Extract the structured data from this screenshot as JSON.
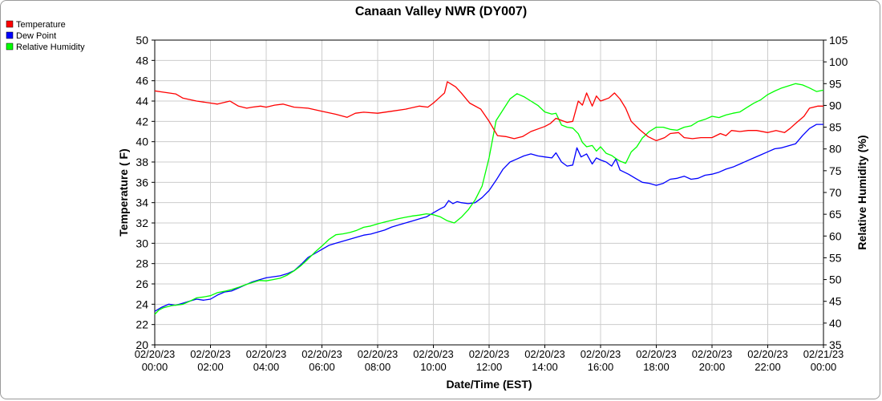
{
  "chart_data": {
    "type": "line",
    "title": "Canaan Valley NWR (DY007)",
    "xlabel": "Date/Time (EST)",
    "ylabel": "Temperature ( F)",
    "y2label": "Relative Humidity (%)",
    "ylim": [
      20,
      50
    ],
    "y2lim": [
      35,
      105
    ],
    "xlim_hours": [
      0,
      24
    ],
    "grid": true,
    "legend_position": "top-left",
    "yticks": [
      20,
      22,
      24,
      26,
      28,
      30,
      32,
      34,
      36,
      38,
      40,
      42,
      44,
      46,
      48,
      50
    ],
    "y2ticks": [
      35,
      40,
      45,
      50,
      55,
      60,
      65,
      70,
      75,
      80,
      85,
      90,
      95,
      100,
      105
    ],
    "xticks": [
      {
        "date": "02/20/23",
        "time": "00:00"
      },
      {
        "date": "02/20/23",
        "time": "02:00"
      },
      {
        "date": "02/20/23",
        "time": "04:00"
      },
      {
        "date": "02/20/23",
        "time": "06:00"
      },
      {
        "date": "02/20/23",
        "time": "08:00"
      },
      {
        "date": "02/20/23",
        "time": "10:00"
      },
      {
        "date": "02/20/23",
        "time": "12:00"
      },
      {
        "date": "02/20/23",
        "time": "14:00"
      },
      {
        "date": "02/20/23",
        "time": "16:00"
      },
      {
        "date": "02/20/23",
        "time": "18:00"
      },
      {
        "date": "02/20/23",
        "time": "20:00"
      },
      {
        "date": "02/20/23",
        "time": "22:00"
      },
      {
        "date": "02/21/23",
        "time": "00:00"
      }
    ],
    "series": [
      {
        "name": "Temperature",
        "color": "#ff0000",
        "axis": "left",
        "points": [
          [
            0,
            45.0
          ],
          [
            0.25,
            44.9
          ],
          [
            0.5,
            44.8
          ],
          [
            0.75,
            44.7
          ],
          [
            1.0,
            44.3
          ],
          [
            1.5,
            44.0
          ],
          [
            2.0,
            43.8
          ],
          [
            2.25,
            43.7
          ],
          [
            2.7,
            44.0
          ],
          [
            3.0,
            43.5
          ],
          [
            3.3,
            43.3
          ],
          [
            3.5,
            43.4
          ],
          [
            3.8,
            43.5
          ],
          [
            4.0,
            43.4
          ],
          [
            4.3,
            43.6
          ],
          [
            4.6,
            43.7
          ],
          [
            5.0,
            43.4
          ],
          [
            5.5,
            43.3
          ],
          [
            6.0,
            43.0
          ],
          [
            6.5,
            42.7
          ],
          [
            6.9,
            42.4
          ],
          [
            7.2,
            42.8
          ],
          [
            7.5,
            42.9
          ],
          [
            8.0,
            42.8
          ],
          [
            8.5,
            43.0
          ],
          [
            9.0,
            43.2
          ],
          [
            9.5,
            43.5
          ],
          [
            9.8,
            43.4
          ],
          [
            10.0,
            43.8
          ],
          [
            10.2,
            44.3
          ],
          [
            10.4,
            44.8
          ],
          [
            10.5,
            45.9
          ],
          [
            10.8,
            45.4
          ],
          [
            11.0,
            44.8
          ],
          [
            11.3,
            43.8
          ],
          [
            11.7,
            43.2
          ],
          [
            12.0,
            42.0
          ],
          [
            12.3,
            40.6
          ],
          [
            12.6,
            40.5
          ],
          [
            12.9,
            40.3
          ],
          [
            13.2,
            40.5
          ],
          [
            13.5,
            41.0
          ],
          [
            13.8,
            41.3
          ],
          [
            14.0,
            41.5
          ],
          [
            14.2,
            41.8
          ],
          [
            14.4,
            42.3
          ],
          [
            14.6,
            42.1
          ],
          [
            14.8,
            41.9
          ],
          [
            15.0,
            42.0
          ],
          [
            15.2,
            44.0
          ],
          [
            15.35,
            43.6
          ],
          [
            15.5,
            44.8
          ],
          [
            15.7,
            43.5
          ],
          [
            15.85,
            44.5
          ],
          [
            16.0,
            44.0
          ],
          [
            16.3,
            44.3
          ],
          [
            16.5,
            44.8
          ],
          [
            16.7,
            44.2
          ],
          [
            16.9,
            43.3
          ],
          [
            17.1,
            42.0
          ],
          [
            17.4,
            41.2
          ],
          [
            17.7,
            40.5
          ],
          [
            18.0,
            40.1
          ],
          [
            18.3,
            40.4
          ],
          [
            18.5,
            40.8
          ],
          [
            18.8,
            40.9
          ],
          [
            19.0,
            40.4
          ],
          [
            19.3,
            40.3
          ],
          [
            19.6,
            40.4
          ],
          [
            20.0,
            40.4
          ],
          [
            20.3,
            40.8
          ],
          [
            20.5,
            40.6
          ],
          [
            20.7,
            41.1
          ],
          [
            21.0,
            41.0
          ],
          [
            21.3,
            41.1
          ],
          [
            21.6,
            41.1
          ],
          [
            22.0,
            40.9
          ],
          [
            22.3,
            41.1
          ],
          [
            22.6,
            40.9
          ],
          [
            22.8,
            41.3
          ],
          [
            23.0,
            41.8
          ],
          [
            23.3,
            42.5
          ],
          [
            23.5,
            43.3
          ],
          [
            23.8,
            43.5
          ],
          [
            24.0,
            43.5
          ]
        ]
      },
      {
        "name": "Dew Point",
        "color": "#0000ff",
        "axis": "left",
        "points": [
          [
            0,
            23.3
          ],
          [
            0.25,
            23.7
          ],
          [
            0.5,
            24.0
          ],
          [
            0.75,
            23.9
          ],
          [
            1.0,
            24.1
          ],
          [
            1.25,
            24.3
          ],
          [
            1.5,
            24.5
          ],
          [
            1.75,
            24.4
          ],
          [
            2.0,
            24.5
          ],
          [
            2.25,
            24.9
          ],
          [
            2.5,
            25.2
          ],
          [
            2.75,
            25.3
          ],
          [
            3.0,
            25.6
          ],
          [
            3.25,
            25.9
          ],
          [
            3.5,
            26.2
          ],
          [
            3.75,
            26.4
          ],
          [
            4.0,
            26.6
          ],
          [
            4.25,
            26.7
          ],
          [
            4.5,
            26.8
          ],
          [
            4.75,
            27.0
          ],
          [
            5.0,
            27.3
          ],
          [
            5.25,
            27.9
          ],
          [
            5.5,
            28.6
          ],
          [
            5.75,
            29.0
          ],
          [
            6.0,
            29.4
          ],
          [
            6.25,
            29.8
          ],
          [
            6.5,
            30.0
          ],
          [
            6.75,
            30.2
          ],
          [
            7.0,
            30.4
          ],
          [
            7.25,
            30.6
          ],
          [
            7.5,
            30.8
          ],
          [
            7.75,
            30.9
          ],
          [
            8.0,
            31.1
          ],
          [
            8.25,
            31.3
          ],
          [
            8.5,
            31.6
          ],
          [
            8.75,
            31.8
          ],
          [
            9.0,
            32.0
          ],
          [
            9.25,
            32.2
          ],
          [
            9.5,
            32.4
          ],
          [
            9.75,
            32.6
          ],
          [
            10.0,
            33.0
          ],
          [
            10.25,
            33.4
          ],
          [
            10.4,
            33.6
          ],
          [
            10.55,
            34.2
          ],
          [
            10.7,
            33.9
          ],
          [
            10.85,
            34.1
          ],
          [
            11.0,
            34.0
          ],
          [
            11.25,
            33.9
          ],
          [
            11.5,
            34.0
          ],
          [
            11.75,
            34.5
          ],
          [
            12.0,
            35.2
          ],
          [
            12.25,
            36.2
          ],
          [
            12.5,
            37.3
          ],
          [
            12.75,
            38.0
          ],
          [
            13.0,
            38.3
          ],
          [
            13.25,
            38.6
          ],
          [
            13.5,
            38.8
          ],
          [
            13.75,
            38.6
          ],
          [
            14.0,
            38.5
          ],
          [
            14.25,
            38.4
          ],
          [
            14.4,
            38.9
          ],
          [
            14.6,
            38.0
          ],
          [
            14.8,
            37.6
          ],
          [
            15.0,
            37.7
          ],
          [
            15.15,
            39.4
          ],
          [
            15.3,
            38.5
          ],
          [
            15.5,
            38.8
          ],
          [
            15.7,
            37.8
          ],
          [
            15.85,
            38.4
          ],
          [
            16.0,
            38.2
          ],
          [
            16.2,
            38.0
          ],
          [
            16.4,
            37.6
          ],
          [
            16.55,
            38.3
          ],
          [
            16.7,
            37.2
          ],
          [
            17.0,
            36.8
          ],
          [
            17.25,
            36.4
          ],
          [
            17.5,
            36.0
          ],
          [
            17.75,
            35.9
          ],
          [
            18.0,
            35.7
          ],
          [
            18.25,
            35.9
          ],
          [
            18.5,
            36.3
          ],
          [
            18.75,
            36.4
          ],
          [
            19.0,
            36.6
          ],
          [
            19.25,
            36.3
          ],
          [
            19.5,
            36.4
          ],
          [
            19.75,
            36.7
          ],
          [
            20.0,
            36.8
          ],
          [
            20.25,
            37.0
          ],
          [
            20.5,
            37.3
          ],
          [
            20.75,
            37.5
          ],
          [
            21.0,
            37.8
          ],
          [
            21.25,
            38.1
          ],
          [
            21.5,
            38.4
          ],
          [
            21.75,
            38.7
          ],
          [
            22.0,
            39.0
          ],
          [
            22.25,
            39.3
          ],
          [
            22.5,
            39.4
          ],
          [
            22.75,
            39.6
          ],
          [
            23.0,
            39.8
          ],
          [
            23.25,
            40.6
          ],
          [
            23.5,
            41.3
          ],
          [
            23.75,
            41.7
          ],
          [
            24.0,
            41.7
          ]
        ]
      },
      {
        "name": "Relative Humidity",
        "color": "#00ff00",
        "axis": "right",
        "points": [
          [
            0,
            42.0
          ],
          [
            0.15,
            43.0
          ],
          [
            0.3,
            43.5
          ],
          [
            0.6,
            44.0
          ],
          [
            1.0,
            44.3
          ],
          [
            1.25,
            45.0
          ],
          [
            1.5,
            45.8
          ],
          [
            1.75,
            46.0
          ],
          [
            2.0,
            46.3
          ],
          [
            2.25,
            47.0
          ],
          [
            2.5,
            47.3
          ],
          [
            2.75,
            47.7
          ],
          [
            3.0,
            48.2
          ],
          [
            3.25,
            48.8
          ],
          [
            3.5,
            49.3
          ],
          [
            3.75,
            49.8
          ],
          [
            4.0,
            49.7
          ],
          [
            4.25,
            50.0
          ],
          [
            4.5,
            50.3
          ],
          [
            4.75,
            51.0
          ],
          [
            5.0,
            52.0
          ],
          [
            5.25,
            53.2
          ],
          [
            5.5,
            54.7
          ],
          [
            5.75,
            56.3
          ],
          [
            6.0,
            57.7
          ],
          [
            6.25,
            59.2
          ],
          [
            6.5,
            60.3
          ],
          [
            6.75,
            60.5
          ],
          [
            7.0,
            60.8
          ],
          [
            7.25,
            61.3
          ],
          [
            7.5,
            62.0
          ],
          [
            7.75,
            62.3
          ],
          [
            8.0,
            62.8
          ],
          [
            8.25,
            63.2
          ],
          [
            8.5,
            63.6
          ],
          [
            8.75,
            64.0
          ],
          [
            9.0,
            64.3
          ],
          [
            9.25,
            64.6
          ],
          [
            9.5,
            64.8
          ],
          [
            9.75,
            65.1
          ],
          [
            10.0,
            64.9
          ],
          [
            10.25,
            64.4
          ],
          [
            10.5,
            63.5
          ],
          [
            10.75,
            63.0
          ],
          [
            11.0,
            64.3
          ],
          [
            11.25,
            66.0
          ],
          [
            11.5,
            68.3
          ],
          [
            11.75,
            71.5
          ],
          [
            12.0,
            78.0
          ],
          [
            12.25,
            86.5
          ],
          [
            12.5,
            89.0
          ],
          [
            12.75,
            91.5
          ],
          [
            13.0,
            92.7
          ],
          [
            13.25,
            92.0
          ],
          [
            13.5,
            91.0
          ],
          [
            13.75,
            90.0
          ],
          [
            14.0,
            88.5
          ],
          [
            14.25,
            88.0
          ],
          [
            14.4,
            88.2
          ],
          [
            14.6,
            85.5
          ],
          [
            14.8,
            85.0
          ],
          [
            15.0,
            84.8
          ],
          [
            15.2,
            83.5
          ],
          [
            15.35,
            81.5
          ],
          [
            15.5,
            80.5
          ],
          [
            15.7,
            80.8
          ],
          [
            15.85,
            79.5
          ],
          [
            16.0,
            80.5
          ],
          [
            16.2,
            79.0
          ],
          [
            16.4,
            78.5
          ],
          [
            16.55,
            77.8
          ],
          [
            16.7,
            77.2
          ],
          [
            16.9,
            76.7
          ],
          [
            17.1,
            79.3
          ],
          [
            17.3,
            80.5
          ],
          [
            17.5,
            82.5
          ],
          [
            17.75,
            84.0
          ],
          [
            18.0,
            85.0
          ],
          [
            18.25,
            85.0
          ],
          [
            18.5,
            84.5
          ],
          [
            18.75,
            84.3
          ],
          [
            19.0,
            85.0
          ],
          [
            19.25,
            85.3
          ],
          [
            19.5,
            86.3
          ],
          [
            19.75,
            86.8
          ],
          [
            20.0,
            87.5
          ],
          [
            20.25,
            87.2
          ],
          [
            20.5,
            87.8
          ],
          [
            20.75,
            88.2
          ],
          [
            21.0,
            88.5
          ],
          [
            21.25,
            89.5
          ],
          [
            21.5,
            90.5
          ],
          [
            21.75,
            91.3
          ],
          [
            22.0,
            92.5
          ],
          [
            22.25,
            93.3
          ],
          [
            22.5,
            94.0
          ],
          [
            22.75,
            94.5
          ],
          [
            23.0,
            95.0
          ],
          [
            23.25,
            94.7
          ],
          [
            23.5,
            94.0
          ],
          [
            23.75,
            93.2
          ],
          [
            24.0,
            93.5
          ]
        ]
      }
    ]
  }
}
